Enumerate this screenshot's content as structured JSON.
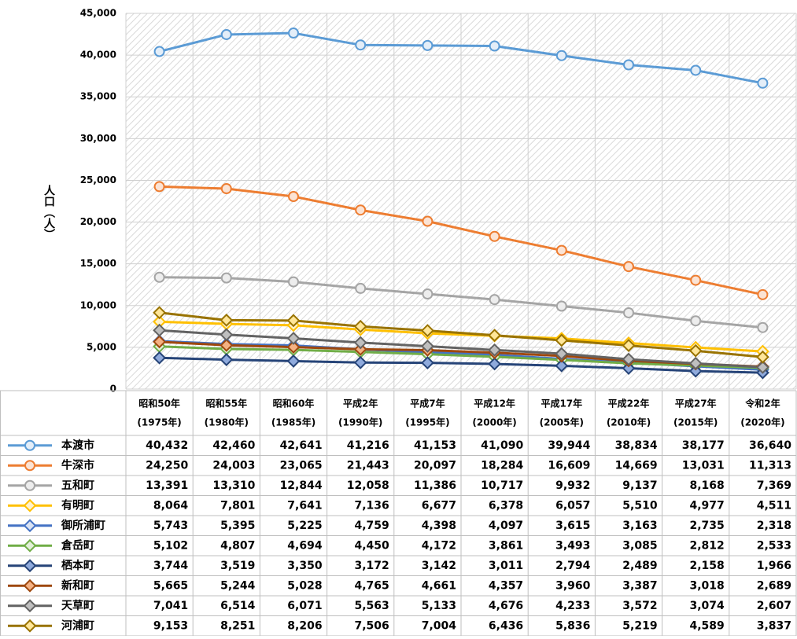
{
  "chart_data": {
    "type": "line",
    "y_label": "人口（人）",
    "categories": [
      "昭和50年",
      "昭和55年",
      "昭和60年",
      "平成2年",
      "平成7年",
      "平成12年",
      "平成17年",
      "平成22年",
      "平成27年",
      "令和2年"
    ],
    "category_years": [
      "(1975年)",
      "(1980年)",
      "(1985年)",
      "(1990年)",
      "(1995年)",
      "(2000年)",
      "(2005年)",
      "(2010年)",
      "(2015年)",
      "(2020年)"
    ],
    "ylim": [
      0,
      45000
    ],
    "yticks": [
      0,
      {
        "value": 5000,
        "label": "5,000"
      },
      {
        "value": 10000,
        "label": "10,000"
      },
      {
        "value": 15000,
        "label": "15,000"
      },
      {
        "value": 20000,
        "label": "20,000"
      },
      {
        "value": 25000,
        "label": "25,000"
      },
      {
        "value": 30000,
        "label": "30,000"
      },
      {
        "value": 35000,
        "label": "35,000"
      },
      {
        "value": 40000,
        "label": "40,000"
      },
      {
        "value": 45000,
        "label": "45,000"
      }
    ],
    "grid": true,
    "series": [
      {
        "name": "本渡市",
        "color": "#5b9bd5",
        "marker": "circle",
        "marker_fill": "#e4eef8",
        "values": [
          40432,
          42460,
          42641,
          41216,
          41153,
          41090,
          39944,
          38834,
          38177,
          36640
        ],
        "value_labels": [
          "40,432",
          "42,460",
          "42,641",
          "41,216",
          "41,153",
          "41,090",
          "39,944",
          "38,834",
          "38,177",
          "36,640"
        ]
      },
      {
        "name": "牛深市",
        "color": "#ed7d31",
        "marker": "circle",
        "marker_fill": "#fbe3d4",
        "values": [
          24250,
          24003,
          23065,
          21443,
          20097,
          18284,
          16609,
          14669,
          13031,
          11313
        ],
        "value_labels": [
          "24,250",
          "24,003",
          "23,065",
          "21,443",
          "20,097",
          "18,284",
          "16,609",
          "14,669",
          "13,031",
          "11,313"
        ]
      },
      {
        "name": "五和町",
        "color": "#a5a5a5",
        "marker": "circle",
        "marker_fill": "#ededed",
        "values": [
          13391,
          13310,
          12844,
          12058,
          11386,
          10717,
          9932,
          9137,
          8168,
          7369
        ],
        "value_labels": [
          "13,391",
          "13,310",
          "12,844",
          "12,058",
          "11,386",
          "10,717",
          "9,932",
          "9,137",
          "8,168",
          "7,369"
        ]
      },
      {
        "name": "有明町",
        "color": "#ffc000",
        "marker": "diamond",
        "marker_fill": "#fff2cc",
        "values": [
          8064,
          7801,
          7641,
          7136,
          6677,
          6378,
          6057,
          5510,
          4977,
          4511
        ],
        "value_labels": [
          "8,064",
          "7,801",
          "7,641",
          "7,136",
          "6,677",
          "6,378",
          "6,057",
          "5,510",
          "4,977",
          "4,511"
        ]
      },
      {
        "name": "御所浦町",
        "color": "#4472c4",
        "marker": "diamond",
        "marker_fill": "#dae3f3",
        "values": [
          5743,
          5395,
          5225,
          4759,
          4398,
          4097,
          3615,
          3163,
          2735,
          2318
        ],
        "value_labels": [
          "5,743",
          "5,395",
          "5,225",
          "4,759",
          "4,398",
          "4,097",
          "3,615",
          "3,163",
          "2,735",
          "2,318"
        ]
      },
      {
        "name": "倉岳町",
        "color": "#70ad47",
        "marker": "diamond",
        "marker_fill": "#e2f0d9",
        "values": [
          5102,
          4807,
          4694,
          4450,
          4172,
          3861,
          3493,
          3085,
          2812,
          2533
        ],
        "value_labels": [
          "5,102",
          "4,807",
          "4,694",
          "4,450",
          "4,172",
          "3,861",
          "3,493",
          "3,085",
          "2,812",
          "2,533"
        ]
      },
      {
        "name": "栖本町",
        "color": "#264478",
        "marker": "diamond",
        "marker_fill": "#8faadc",
        "values": [
          3744,
          3519,
          3350,
          3172,
          3142,
          3011,
          2794,
          2489,
          2158,
          1966
        ],
        "value_labels": [
          "3,744",
          "3,519",
          "3,350",
          "3,172",
          "3,142",
          "3,011",
          "2,794",
          "2,489",
          "2,158",
          "1,966"
        ]
      },
      {
        "name": "新和町",
        "color": "#9e480e",
        "marker": "diamond",
        "marker_fill": "#f4b183",
        "values": [
          5665,
          5244,
          5028,
          4765,
          4661,
          4357,
          3960,
          3387,
          3018,
          2689
        ],
        "value_labels": [
          "5,665",
          "5,244",
          "5,028",
          "4,765",
          "4,661",
          "4,357",
          "3,960",
          "3,387",
          "3,018",
          "2,689"
        ]
      },
      {
        "name": "天草町",
        "color": "#636363",
        "marker": "diamond",
        "marker_fill": "#bfbfbf",
        "values": [
          7041,
          6514,
          6071,
          5563,
          5133,
          4676,
          4233,
          3572,
          3074,
          2607
        ],
        "value_labels": [
          "7,041",
          "6,514",
          "6,071",
          "5,563",
          "5,133",
          "4,676",
          "4,233",
          "3,572",
          "3,074",
          "2,607"
        ]
      },
      {
        "name": "河浦町",
        "color": "#997300",
        "marker": "diamond",
        "marker_fill": "#ffe699",
        "values": [
          9153,
          8251,
          8206,
          7506,
          7004,
          6436,
          5836,
          5219,
          4589,
          3837
        ],
        "value_labels": [
          "9,153",
          "8,251",
          "8,206",
          "7,506",
          "7,004",
          "6,436",
          "5,836",
          "5,219",
          "4,589",
          "3,837"
        ]
      }
    ]
  }
}
